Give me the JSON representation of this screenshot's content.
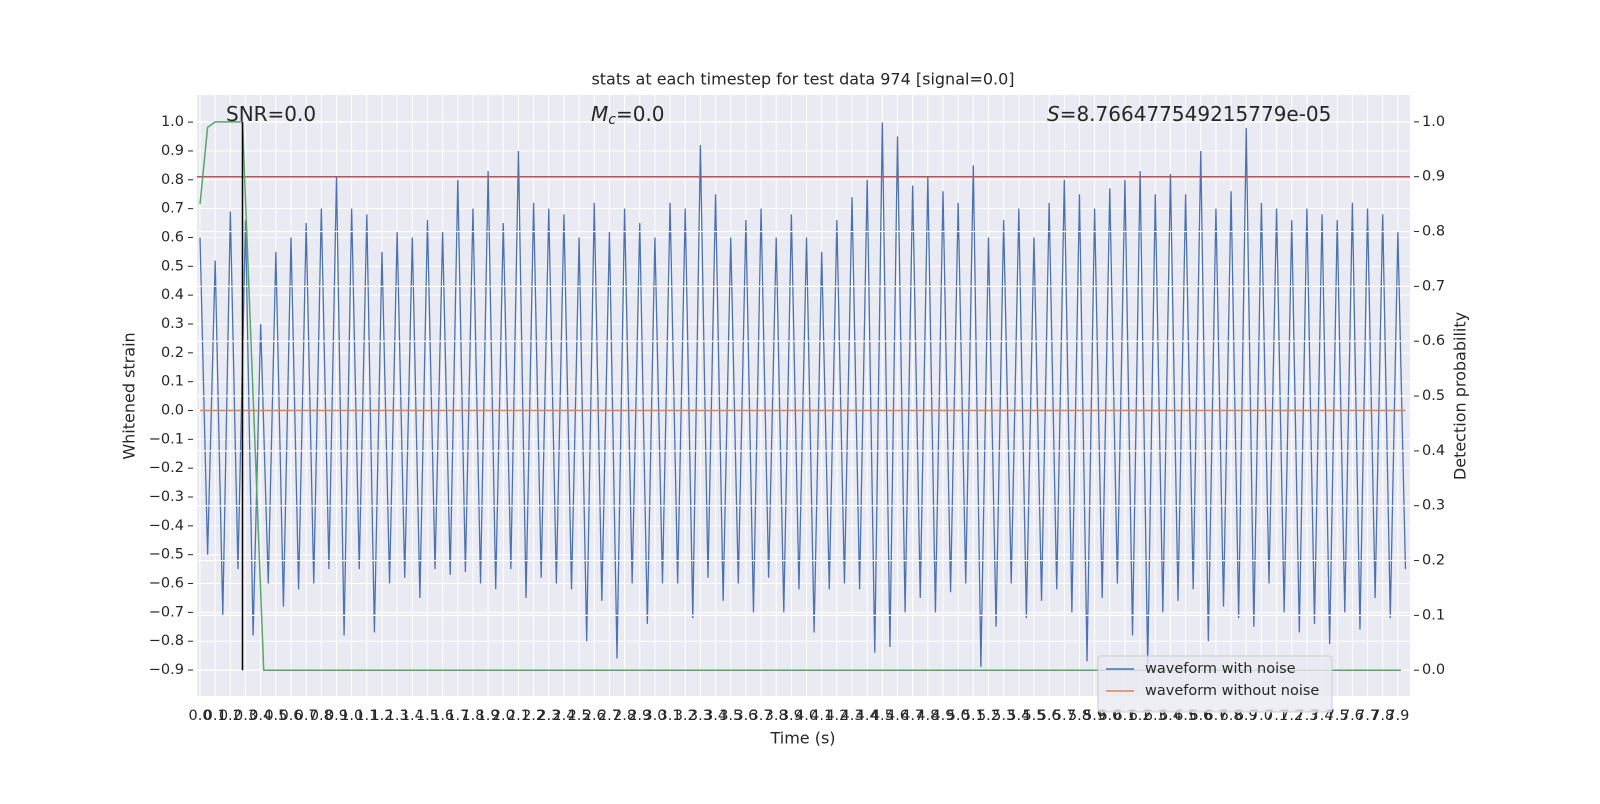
{
  "chart_data": {
    "type": "line",
    "title": "stats at each timestep for test data 974 [signal=0.0]",
    "x_label": "Time (s)",
    "y_label": "Whitened strain",
    "y2_label": "Detection probability",
    "annotations": [
      {
        "text": "SNR=0.0"
      },
      {
        "math": "M",
        "sub": "c",
        "text": "=0.0"
      },
      {
        "math": "S",
        "text": "=8.766477549215779e-05"
      }
    ],
    "xlim": [
      -0.02,
      7.98
    ],
    "ylim": [
      -0.99,
      1.094
    ],
    "y2lim": [
      -0.047,
      1.049
    ],
    "xticks": [
      {
        "value": 0,
        "label": "0.0"
      },
      0.1,
      0.2,
      0.3,
      0.4,
      0.5,
      0.6,
      0.7,
      0.8,
      0.9,
      {
        "value": 1,
        "label": "1.0"
      },
      1.1,
      1.2,
      1.3,
      1.4,
      1.5,
      1.6,
      1.7,
      1.8,
      1.9,
      {
        "value": 2,
        "label": "2.0"
      },
      2.1,
      2.2,
      2.3,
      2.4,
      2.5,
      2.6,
      2.7,
      2.8,
      2.9,
      {
        "value": 3,
        "label": "3.0"
      },
      3.1,
      3.2,
      3.3,
      3.4,
      3.5,
      3.6,
      3.7,
      3.8,
      3.9,
      {
        "value": 4,
        "label": "4.0"
      },
      4.1,
      4.2,
      4.3,
      4.4,
      4.5,
      4.6,
      4.7,
      4.8,
      4.9,
      {
        "value": 5,
        "label": "5.0"
      },
      5.1,
      5.2,
      5.3,
      5.4,
      5.5,
      5.6,
      5.7,
      5.8,
      5.9,
      {
        "value": 6,
        "label": "6.0"
      },
      6.1,
      6.2,
      6.3,
      6.4,
      6.5,
      6.6,
      6.7,
      6.8,
      6.9,
      {
        "value": 7,
        "label": "7.0"
      },
      7.1,
      7.2,
      7.3,
      7.4,
      7.5,
      7.6,
      7.7,
      7.8,
      7.9
    ],
    "yticks": [
      {
        "value": -0.9,
        "label": "−0.9"
      },
      {
        "value": -0.8,
        "label": "−0.8"
      },
      {
        "value": -0.7,
        "label": "−0.7"
      },
      {
        "value": -0.6,
        "label": "−0.6"
      },
      {
        "value": -0.5,
        "label": "−0.5"
      },
      {
        "value": -0.4,
        "label": "−0.4"
      },
      {
        "value": -0.3,
        "label": "−0.3"
      },
      {
        "value": -0.2,
        "label": "−0.2"
      },
      {
        "value": -0.1,
        "label": "−0.1"
      },
      {
        "value": 0,
        "label": "0.0"
      },
      0.1,
      0.2,
      0.3,
      0.4,
      0.5,
      0.6,
      0.7,
      0.8,
      0.9,
      {
        "value": 1,
        "label": "1.0"
      }
    ],
    "y2ticks": [
      {
        "value": 0,
        "label": "0.0"
      },
      0.1,
      0.2,
      0.3,
      0.4,
      0.5,
      0.6,
      0.7,
      0.8,
      0.9,
      {
        "value": 1,
        "label": "1.0"
      }
    ],
    "grid": true,
    "series": [
      {
        "name": "waveform with noise",
        "color": "#4c72b0",
        "x": [
          0,
          0.05,
          0.1,
          0.15,
          0.2,
          0.25,
          0.3,
          0.35,
          0.4,
          0.45,
          0.5,
          0.55,
          0.6,
          0.65,
          0.7,
          0.75,
          0.8,
          0.85,
          0.9,
          0.95,
          1,
          1.05,
          1.1,
          1.15,
          1.2,
          1.25,
          1.3,
          1.35,
          1.4,
          1.45,
          1.5,
          1.55,
          1.6,
          1.65,
          1.7,
          1.75,
          1.8,
          1.85,
          1.9,
          1.95,
          2,
          2.05,
          2.1,
          2.15,
          2.2,
          2.25,
          2.3,
          2.35,
          2.4,
          2.45,
          2.5,
          2.55,
          2.6,
          2.65,
          2.7,
          2.75,
          2.8,
          2.85,
          2.9,
          2.95,
          3,
          3.05,
          3.1,
          3.15,
          3.2,
          3.25,
          3.3,
          3.35,
          3.4,
          3.45,
          3.5,
          3.55,
          3.6,
          3.65,
          3.7,
          3.75,
          3.8,
          3.85,
          3.9,
          3.95,
          4,
          4.05,
          4.1,
          4.15,
          4.2,
          4.25,
          4.3,
          4.35,
          4.4,
          4.45,
          4.5,
          4.55,
          4.6,
          4.65,
          4.7,
          4.75,
          4.8,
          4.85,
          4.9,
          4.95,
          5,
          5.05,
          5.1,
          5.15,
          5.2,
          5.25,
          5.3,
          5.35,
          5.4,
          5.45,
          5.5,
          5.55,
          5.6,
          5.65,
          5.7,
          5.75,
          5.8,
          5.85,
          5.9,
          5.95,
          6,
          6.05,
          6.1,
          6.15,
          6.2,
          6.25,
          6.3,
          6.35,
          6.4,
          6.45,
          6.5,
          6.55,
          6.6,
          6.65,
          6.7,
          6.75,
          6.8,
          6.85,
          6.9,
          6.95,
          7,
          7.05,
          7.1,
          7.15,
          7.2,
          7.25,
          7.3,
          7.35,
          7.4,
          7.45,
          7.5,
          7.55,
          7.6,
          7.65,
          7.7,
          7.75,
          7.8,
          7.85,
          7.9,
          7.95
        ],
        "values": [
          0.6,
          -0.5,
          0.52,
          -0.71,
          0.69,
          -0.55,
          0.66,
          -0.78,
          0.3,
          -0.6,
          0.55,
          -0.68,
          0.6,
          -0.62,
          0.65,
          -0.6,
          0.7,
          -0.55,
          0.81,
          -0.78,
          0.7,
          -0.55,
          0.68,
          -0.77,
          0.55,
          -0.6,
          0.62,
          -0.58,
          0.6,
          -0.65,
          0.66,
          -0.55,
          0.62,
          -0.57,
          0.8,
          -0.56,
          0.7,
          -0.6,
          0.83,
          -0.62,
          0.65,
          -0.55,
          0.9,
          -0.65,
          0.72,
          -0.58,
          0.7,
          -0.6,
          0.68,
          -0.62,
          0.6,
          -0.8,
          0.72,
          -0.66,
          0.62,
          -0.86,
          0.7,
          -0.6,
          0.65,
          -0.74,
          0.6,
          -0.6,
          0.72,
          -0.6,
          0.7,
          -0.72,
          0.92,
          -0.58,
          0.75,
          -0.66,
          0.6,
          -0.6,
          0.66,
          -0.7,
          0.7,
          -0.58,
          0.6,
          -0.7,
          0.68,
          -0.62,
          0.6,
          -0.77,
          0.55,
          -0.62,
          0.66,
          -0.6,
          0.74,
          -0.62,
          0.8,
          -0.84,
          1.0,
          -0.82,
          0.95,
          -0.7,
          0.78,
          -0.65,
          0.81,
          -0.7,
          0.76,
          -0.63,
          0.72,
          -0.6,
          0.85,
          -0.89,
          0.6,
          -0.75,
          0.66,
          -0.6,
          0.7,
          -0.72,
          0.6,
          -0.66,
          0.72,
          -0.62,
          0.8,
          -0.7,
          0.75,
          -0.87,
          0.7,
          -0.65,
          0.77,
          -0.6,
          0.8,
          -0.78,
          0.83,
          -0.89,
          0.75,
          -0.7,
          0.82,
          -0.66,
          0.75,
          -0.62,
          0.9,
          -0.8,
          0.7,
          -0.68,
          0.76,
          -0.72,
          0.98,
          -0.75,
          0.72,
          -0.6,
          0.7,
          -0.7,
          0.66,
          -0.77,
          0.7,
          -0.74,
          0.68,
          -0.81,
          0.66,
          -0.7,
          0.72,
          -0.76,
          0.7,
          -0.65,
          0.68,
          -0.72,
          0.62,
          -0.55
        ]
      },
      {
        "name": "waveform without noise",
        "color": "#dd8452",
        "x": [
          0,
          7.95
        ],
        "values": [
          0,
          0
        ]
      },
      {
        "color": "#55a868",
        "axis": "y2",
        "x": [
          0,
          0.05,
          0.1,
          0.2,
          0.28,
          0.42,
          7.92
        ],
        "values": [
          0.85,
          0.99,
          1.0,
          1.0,
          1.0,
          0,
          0
        ]
      }
    ],
    "threshold": {
      "value": 0.9,
      "color": "#c44e52",
      "axis": "y2"
    },
    "vline": {
      "x": 0.28,
      "y2": [
        0,
        1
      ],
      "color": "#000000"
    },
    "legend": "lower right"
  }
}
